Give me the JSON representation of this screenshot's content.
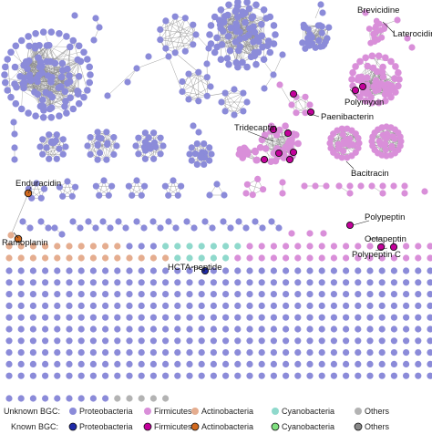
{
  "colors": {
    "proteobacteria": "#8b8bd9",
    "firmicutes": "#d98fd9",
    "actinobacteria": "#e5ad8f",
    "cyanobacteria": "#8fd9cc",
    "others": "#b3b3b3",
    "known_proteobacteria": "#1f2aa8",
    "known_firmicutes": "#c3009b",
    "known_actinobacteria": "#d2691e",
    "known_cyanobacteria": "#7fe07f",
    "known_others": "#888888",
    "edge": "#8a8a8a"
  },
  "labels": {
    "brevicidine": "Brevicidine",
    "laterocidine": "Laterocidine",
    "polymyxin": "Polymyxin",
    "paenibacterin": "Paenibacterin",
    "tridecaptin": "Tridecaptin",
    "bacitracin": "Bacitracin",
    "enduracidin": "Enduracidin",
    "ramoplanin": "Ramoplanin",
    "polypeptin": "Polypeptin",
    "octapeptin": "Octapeptin",
    "polypeptin_c": "Polypeptin C",
    "hcta_peptide": "HCTA-peptide"
  },
  "legend": {
    "unknown_title": "Unknown BGC:",
    "known_title": "Known BGC:",
    "categories": [
      "Proteobacteria",
      "Firmicutes",
      "Actinobacteria",
      "Cyanobacteria",
      "Others"
    ]
  }
}
